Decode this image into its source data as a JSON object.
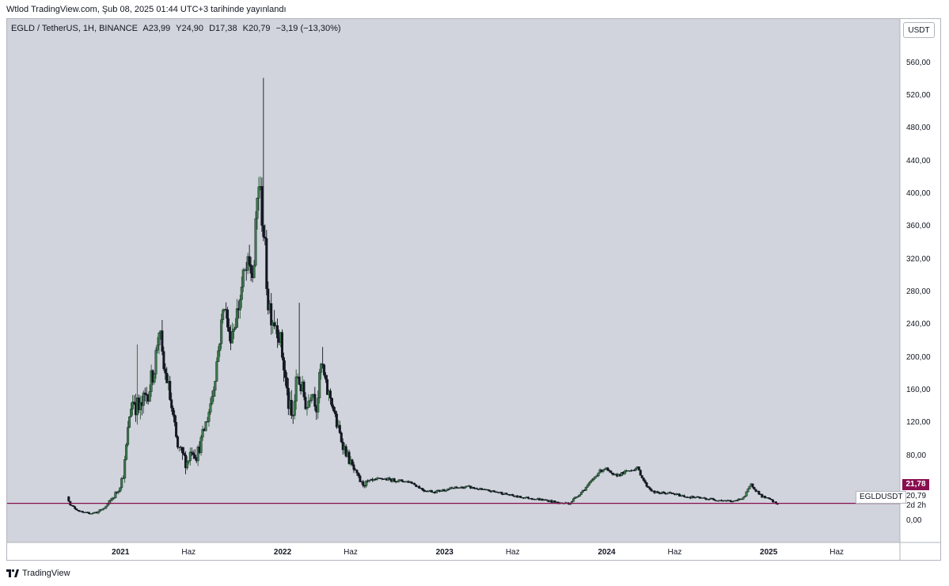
{
  "header": {
    "text": "Wtlod TradingView.com, Şub 08, 2025 01:44 UTC+3 tarihinde yayınlandı"
  },
  "legend": {
    "symbol": "EGLD / TetherUS, 1H, BINANCE",
    "open": "A23,99",
    "high": "Y24,90",
    "low": "D17,38",
    "close": "K20,79",
    "change": "−3,19 (−13,30%)"
  },
  "currency_button": "USDT",
  "price_tag": {
    "current": "21,78",
    "close": "20,79",
    "countdown": "2d 2h",
    "symbol": "EGLDUSDT",
    "color": "#880e4f"
  },
  "footer": {
    "brand": "TradingView"
  },
  "colors": {
    "background": "#d1d4dc",
    "up": "#2e5e3a",
    "down": "#131722",
    "line": "#880e4f"
  },
  "chart_data": {
    "type": "candlestick",
    "title": "EGLD / TetherUS, 1H, BINANCE",
    "y_ticks": [
      "0,00",
      "80,00",
      "120,00",
      "160,00",
      "200,00",
      "240,00",
      "280,00",
      "320,00",
      "360,00",
      "400,00",
      "440,00",
      "480,00",
      "520,00",
      "560,00"
    ],
    "y_tick_values": [
      0,
      80,
      120,
      160,
      200,
      240,
      280,
      320,
      360,
      400,
      440,
      480,
      520,
      560
    ],
    "x_ticks": [
      {
        "label": "2021",
        "t": 2021.0,
        "year": true
      },
      {
        "label": "Haz",
        "t": 2021.42,
        "year": false
      },
      {
        "label": "2022",
        "t": 2022.0,
        "year": true
      },
      {
        "label": "Haz",
        "t": 2022.42,
        "year": false
      },
      {
        "label": "2023",
        "t": 2023.0,
        "year": true
      },
      {
        "label": "Haz",
        "t": 2023.42,
        "year": false
      },
      {
        "label": "2024",
        "t": 2024.0,
        "year": true
      },
      {
        "label": "Haz",
        "t": 2024.42,
        "year": false
      },
      {
        "label": "2025",
        "t": 2025.0,
        "year": true
      },
      {
        "label": "Haz",
        "t": 2025.42,
        "year": false
      }
    ],
    "x_range": [
      2020.3,
      2025.81
    ],
    "y_range": [
      -26,
      614
    ],
    "horizontal_line": 21.78,
    "close_price": 20.79,
    "price_path": [
      [
        2020.68,
        30
      ],
      [
        2020.7,
        20
      ],
      [
        2020.74,
        14
      ],
      [
        2020.78,
        10
      ],
      [
        2020.84,
        10
      ],
      [
        2020.88,
        12
      ],
      [
        2020.92,
        18
      ],
      [
        2020.96,
        28
      ],
      [
        2021.0,
        40
      ],
      [
        2021.03,
        60
      ],
      [
        2021.05,
        100
      ],
      [
        2021.07,
        140
      ],
      [
        2021.09,
        150
      ],
      [
        2021.11,
        140
      ],
      [
        2021.13,
        135
      ],
      [
        2021.16,
        150
      ],
      [
        2021.19,
        165
      ],
      [
        2021.22,
        190
      ],
      [
        2021.25,
        240
      ],
      [
        2021.27,
        190
      ],
      [
        2021.3,
        170
      ],
      [
        2021.33,
        130
      ],
      [
        2021.36,
        90
      ],
      [
        2021.39,
        80
      ],
      [
        2021.42,
        72
      ],
      [
        2021.45,
        90
      ],
      [
        2021.48,
        80
      ],
      [
        2021.51,
        100
      ],
      [
        2021.55,
        130
      ],
      [
        2021.58,
        160
      ],
      [
        2021.62,
        220
      ],
      [
        2021.65,
        270
      ],
      [
        2021.68,
        225
      ],
      [
        2021.71,
        240
      ],
      [
        2021.74,
        265
      ],
      [
        2021.77,
        300
      ],
      [
        2021.8,
        310
      ],
      [
        2021.83,
        300
      ],
      [
        2021.86,
        420
      ],
      [
        2021.89,
        360
      ],
      [
        2021.92,
        270
      ],
      [
        2021.95,
        250
      ],
      [
        2021.98,
        240
      ],
      [
        2022.01,
        200
      ],
      [
        2022.04,
        150
      ],
      [
        2022.07,
        120
      ],
      [
        2022.1,
        180
      ],
      [
        2022.13,
        160
      ],
      [
        2022.16,
        140
      ],
      [
        2022.19,
        165
      ],
      [
        2022.22,
        140
      ],
      [
        2022.25,
        195
      ],
      [
        2022.28,
        160
      ],
      [
        2022.31,
        150
      ],
      [
        2022.34,
        120
      ],
      [
        2022.38,
        95
      ],
      [
        2022.42,
        75
      ],
      [
        2022.46,
        58
      ],
      [
        2022.5,
        45
      ],
      [
        2022.55,
        48
      ],
      [
        2022.62,
        52
      ],
      [
        2022.7,
        50
      ],
      [
        2022.8,
        48
      ],
      [
        2022.88,
        38
      ],
      [
        2022.95,
        36
      ],
      [
        2023.05,
        40
      ],
      [
        2023.15,
        42
      ],
      [
        2023.25,
        38
      ],
      [
        2023.35,
        35
      ],
      [
        2023.45,
        30
      ],
      [
        2023.55,
        28
      ],
      [
        2023.65,
        25
      ],
      [
        2023.72,
        22
      ],
      [
        2023.78,
        22
      ],
      [
        2023.85,
        35
      ],
      [
        2023.9,
        45
      ],
      [
        2023.96,
        60
      ],
      [
        2024.0,
        65
      ],
      [
        2024.05,
        55
      ],
      [
        2024.1,
        58
      ],
      [
        2024.15,
        62
      ],
      [
        2024.2,
        65
      ],
      [
        2024.25,
        45
      ],
      [
        2024.3,
        35
      ],
      [
        2024.4,
        34
      ],
      [
        2024.5,
        30
      ],
      [
        2024.6,
        28
      ],
      [
        2024.7,
        26
      ],
      [
        2024.8,
        24
      ],
      [
        2024.86,
        30
      ],
      [
        2024.9,
        45
      ],
      [
        2024.93,
        38
      ],
      [
        2024.97,
        30
      ],
      [
        2025.02,
        26
      ],
      [
        2025.06,
        20.79
      ]
    ],
    "spikes": [
      {
        "t": 2021.1,
        "high": 216
      },
      {
        "t": 2021.26,
        "high": 246
      },
      {
        "t": 2021.8,
        "high": 338
      },
      {
        "t": 2021.88,
        "high": 542
      },
      {
        "t": 2022.1,
        "high": 267
      },
      {
        "t": 2022.25,
        "high": 213
      }
    ],
    "volatility": [
      [
        2020.8,
        2
      ],
      [
        2021.0,
        8
      ],
      [
        2021.1,
        30
      ],
      [
        2021.3,
        22
      ],
      [
        2021.5,
        16
      ],
      [
        2021.75,
        30
      ],
      [
        2021.9,
        40
      ],
      [
        2022.05,
        28
      ],
      [
        2022.3,
        18
      ],
      [
        2022.45,
        9
      ],
      [
        2022.6,
        4
      ],
      [
        2023.5,
        2.5
      ],
      [
        2024.0,
        4
      ],
      [
        2024.4,
        3
      ],
      [
        2025.0,
        3
      ]
    ]
  }
}
